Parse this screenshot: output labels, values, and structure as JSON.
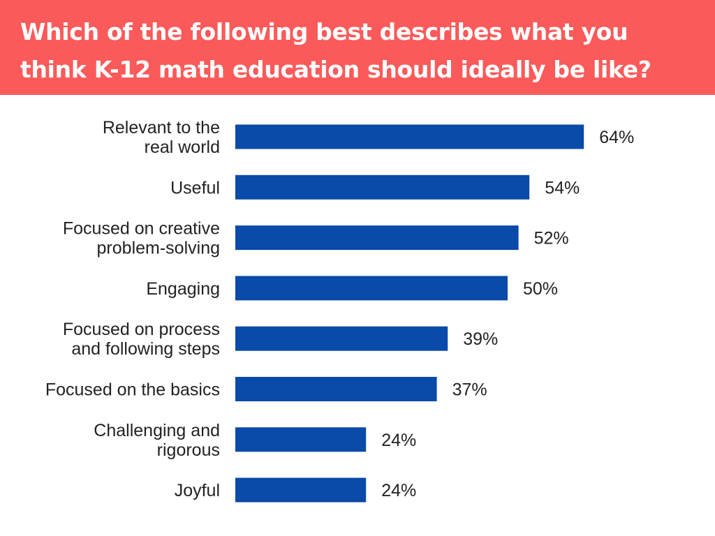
{
  "header": {
    "title_line1": "Which of the following best describes what you",
    "title_line2": "think K-12 math education should ideally be like?",
    "background_color": "#fb5a5a",
    "text_color": "#ffffff"
  },
  "chart_data": {
    "type": "bar",
    "orientation": "horizontal",
    "title": "Which of the following best describes what you think K-12 math education should ideally be like?",
    "categories": [
      [
        "Relevant to the",
        "real world"
      ],
      [
        "Useful"
      ],
      [
        "Focused on creative",
        "problem-solving"
      ],
      [
        "Engaging"
      ],
      [
        "Focused on process",
        "and following steps"
      ],
      [
        "Focused on the basics"
      ],
      [
        "Challenging and",
        "rigorous"
      ],
      [
        "Joyful"
      ]
    ],
    "values": [
      64,
      54,
      52,
      50,
      39,
      37,
      24,
      24
    ],
    "value_labels": [
      "64%",
      "54%",
      "52%",
      "50%",
      "39%",
      "37%",
      "24%",
      "24%"
    ],
    "bar_color": "#0a4aa8",
    "xlim": [
      0,
      100
    ],
    "grid": false,
    "legend": "none"
  }
}
